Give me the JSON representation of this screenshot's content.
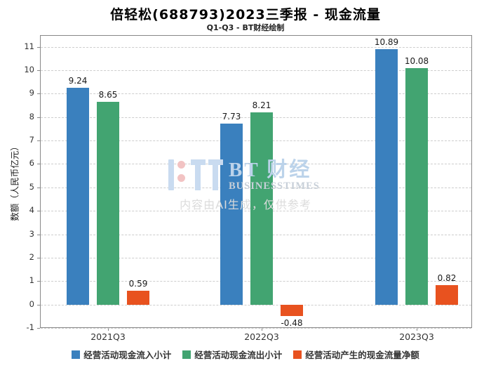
{
  "chart_data": {
    "type": "bar",
    "title": "倍轻松(688793)2023三季报 - 现金流量",
    "subtitle": "Q1-Q3 - BT财经绘制",
    "categories": [
      "2021Q3",
      "2022Q3",
      "2023Q3"
    ],
    "series": [
      {
        "name": "经营活动现金流入小计",
        "color": "#3A80BE",
        "values": [
          9.24,
          7.73,
          10.89
        ]
      },
      {
        "name": "经营活动现金流出小计",
        "color": "#42A471",
        "values": [
          8.65,
          8.21,
          10.08
        ]
      },
      {
        "name": "经营活动产生的现金流量净额",
        "color": "#E8521F",
        "values": [
          0.59,
          -0.48,
          0.82
        ]
      }
    ],
    "xlabel": "",
    "ylabel": "数额（人民币亿元）",
    "ylim": [
      -1,
      11.5
    ],
    "yticks": [
      -1,
      0,
      1,
      2,
      3,
      4,
      5,
      6,
      7,
      8,
      9,
      10,
      11
    ],
    "grid": true,
    "grid_style": "dashed",
    "legend_position": "bottom",
    "value_labels": true
  },
  "watermark": {
    "brand_cn": "BT 财经",
    "brand_en": "BUSINESSTIMES",
    "disclaimer": "内容由AI生成，仅供参考",
    "colors": {
      "logo_blue": "#C9DBF0",
      "logo_pink": "#F2C3C3",
      "brand_cn": "#BCD3EA",
      "brand_en": "#C7CFD8",
      "disclaimer": "#DBDBDB"
    }
  }
}
